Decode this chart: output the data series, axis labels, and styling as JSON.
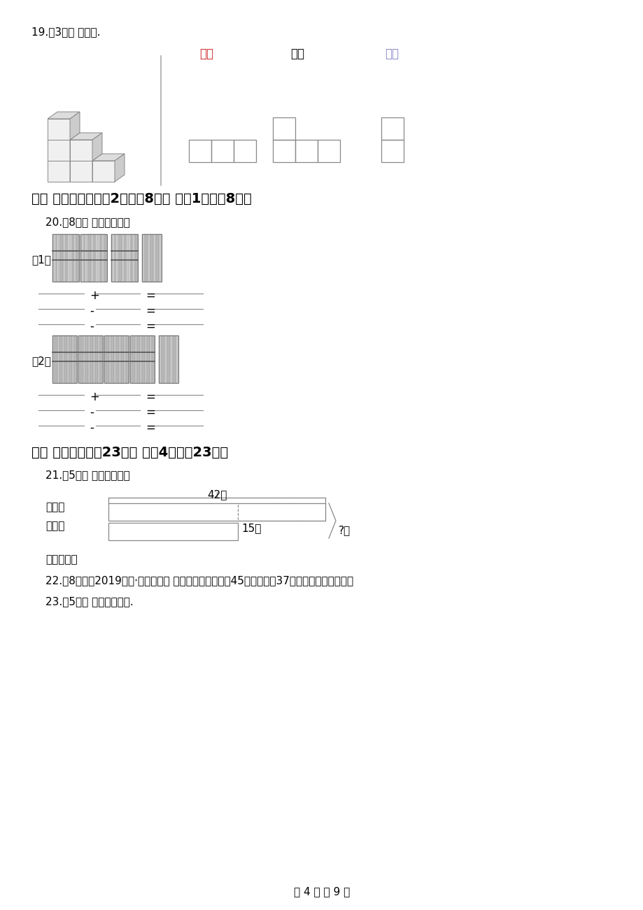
{
  "bg_color": "#ffffff",
  "page_width": 9.2,
  "page_height": 13.02,
  "q19_label": "19.（3分） 连一连.",
  "zhengmian": "正面",
  "shangmian": "上面",
  "cemian": "侧面",
  "section6_title": "六、 看图填空（每式2分，共8分） （共1题；共8分）",
  "q20_label": "20.（8分） 看图写算式。",
  "q20_sub1": "（1）",
  "q20_sub2": "（2）",
  "section7_title": "七、 解决问题（共23分） （共4题；共23分）",
  "q21_label": "21.（5分） 看图列式计算",
  "q21_42": "42个",
  "q21_basketball": "篮球：",
  "q21_football": "足球：",
  "q21_15": "15个",
  "q21_question": "?个",
  "q21_relation": "数量关系：",
  "q22_label": "22.（8分）（2019二上·富阳期末） 小明看一本书，看了45页，还剩了37页。这本书有多少页？",
  "q23_label": "23.（5分） 看图列式计算.",
  "footer": "第 4 页 共 9 页"
}
